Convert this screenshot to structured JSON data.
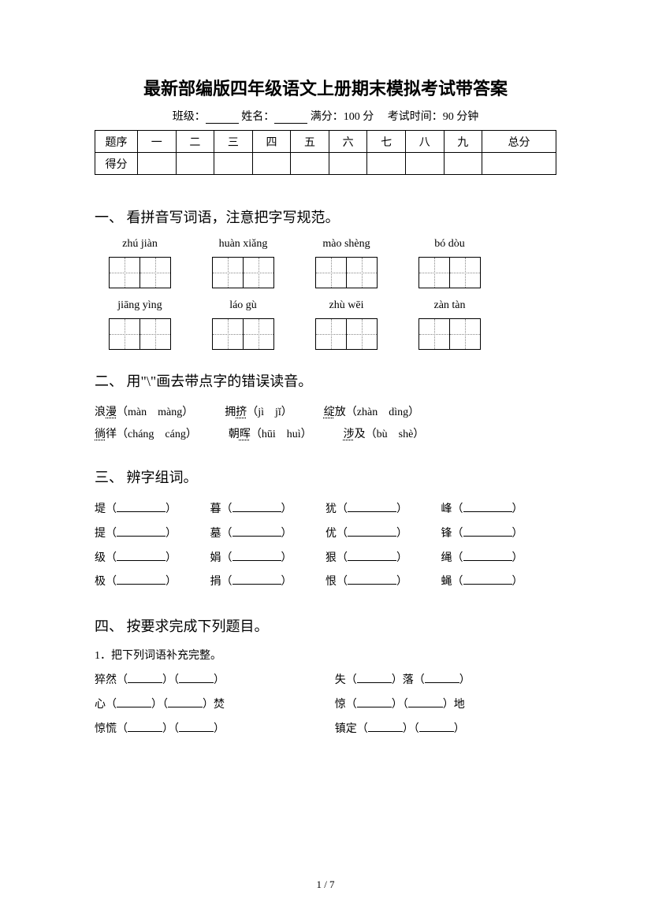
{
  "title": "最新部编版四年级语文上册期末模拟考试带答案",
  "meta": {
    "class_label": "班级：",
    "name_label": "姓名：",
    "full_score_label": "满分：",
    "full_score_value": "100 分",
    "time_label": "考试时间：",
    "time_value": "90 分钟"
  },
  "score_table": {
    "row1_label": "题序",
    "cols": [
      "一",
      "二",
      "三",
      "四",
      "五",
      "六",
      "七",
      "八",
      "九",
      "总分"
    ],
    "row2_label": "得分"
  },
  "section1": {
    "heading": "一、 看拼音写词语，注意把字写规范。",
    "rows": [
      [
        "zhú jiàn",
        "huàn xiǎng",
        "mào shèng",
        "bó dòu"
      ],
      [
        "jiāng yìng",
        "láo gù",
        "zhù wēi",
        "zàn tàn"
      ]
    ]
  },
  "section2": {
    "heading": "二、 用\"\\\"画去带点字的错误读音。",
    "items": [
      [
        {
          "char": "浪",
          "dot": "漫",
          "opts": "（màn　màng）"
        },
        {
          "char": "拥",
          "dot": "挤",
          "opts": "（jì　jǐ）"
        },
        {
          "char": "绽",
          "dot": "放",
          "pre": true,
          "opts": "（zhàn　dìng）"
        }
      ],
      [
        {
          "char": "徜",
          "dot": "徉",
          "pre": true,
          "opts": "（cháng　cáng）"
        },
        {
          "char": "朝",
          "dot": "晖",
          "opts": "（hūi　huì）"
        },
        {
          "char": "涉",
          "dot": "及",
          "pre": true,
          "opts": "（bù　shè）"
        }
      ]
    ]
  },
  "section3": {
    "heading": "三、 辨字组词。",
    "rows": [
      [
        "堤",
        "暮",
        "犹",
        "峰"
      ],
      [
        "提",
        "墓",
        "优",
        "锋"
      ],
      [
        "级",
        "娟",
        "狠",
        "绳"
      ],
      [
        "极",
        "捐",
        "恨",
        "蝇"
      ]
    ]
  },
  "section4": {
    "heading": "四、 按要求完成下列题目。",
    "sub1": "1．把下列词语补充完整。",
    "rows": [
      {
        "left_pre": "猝然",
        "left_suf": "",
        "right_pre": "失",
        "right_mid": "落",
        "right_suf": ""
      },
      {
        "left_pre": "心",
        "left_suf": "焚",
        "right_pre": "惊",
        "right_mid": "",
        "right_suf": "地"
      },
      {
        "left_pre": "惊慌",
        "left_suf": "",
        "right_pre": "镇定",
        "right_mid": "",
        "right_suf": ""
      }
    ]
  },
  "page_indicator": "1 / 7"
}
